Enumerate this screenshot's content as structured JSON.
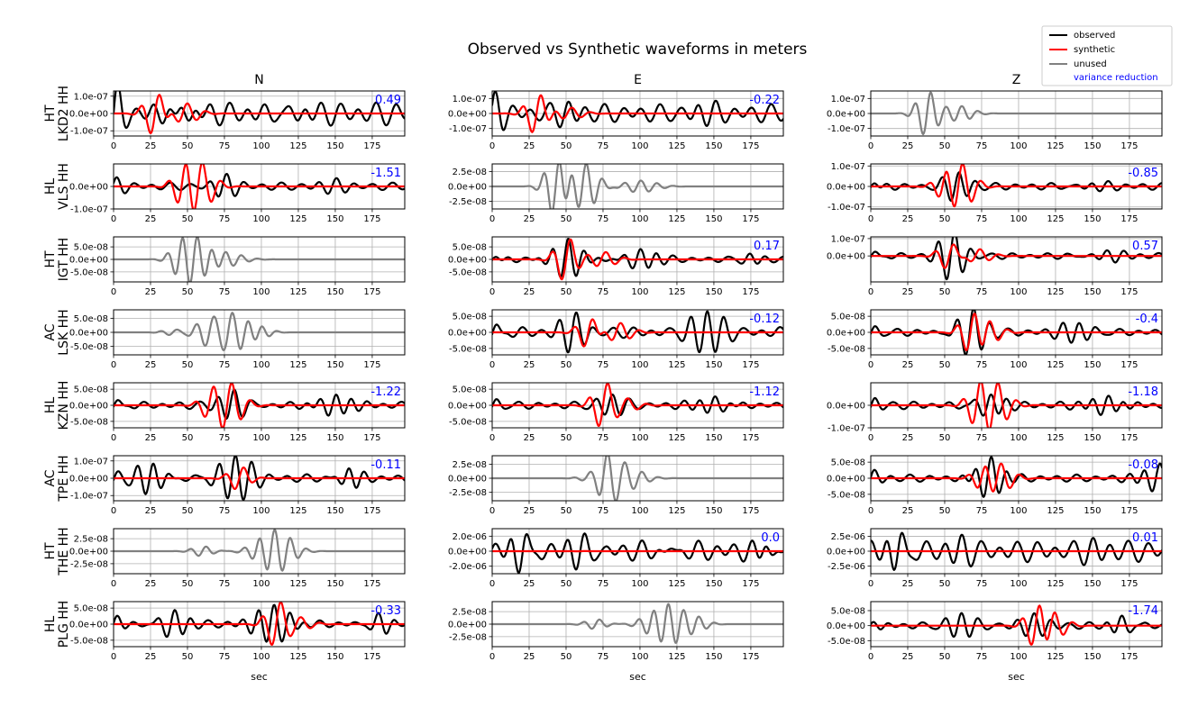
{
  "chart_data": {
    "type": "line",
    "title": "Observed vs Synthetic waveforms in meters",
    "xlabel": "sec",
    "xlim": [
      0,
      197
    ],
    "xticks": [
      0,
      25,
      50,
      75,
      100,
      125,
      150,
      175
    ],
    "columns": [
      "N",
      "E",
      "Z"
    ],
    "rows": [
      {
        "network": "HT",
        "station": "LKD2 HH"
      },
      {
        "network": "HL",
        "station": "VLS HH"
      },
      {
        "network": "HT",
        "station": "IGT HH"
      },
      {
        "network": "AC",
        "station": "LSK HH"
      },
      {
        "network": "HL",
        "station": "KZN HH"
      },
      {
        "network": "AC",
        "station": "TPE HH"
      },
      {
        "network": "HT",
        "station": "THE HH"
      },
      {
        "network": "HL",
        "station": "PLG HH"
      }
    ],
    "legend": {
      "position": "top-right",
      "entries": [
        {
          "label": "observed",
          "color": "#000000"
        },
        {
          "label": "synthetic",
          "color": "#ff0000"
        },
        {
          "label": "unused",
          "color": "#808080"
        },
        {
          "label": "variance reduction",
          "color": "#0000ff"
        }
      ]
    },
    "panels": [
      [
        {
          "used": true,
          "vr": "0.49",
          "ylim": [
            -1.3e-07,
            1.3e-07
          ],
          "yticks": [
            1e-07,
            0,
            -1e-07
          ],
          "ytick_labels": [
            "1.0e-07",
            "0.0e+00",
            "-1.0e-07"
          ],
          "obs_events": [
            [
              0,
              1.2e-07
            ],
            [
              45,
              7e-08
            ],
            [
              120,
              4e-08
            ]
          ],
          "syn_events": [
            [
              28,
              1.3e-07
            ],
            [
              48,
              6e-08
            ]
          ]
        },
        {
          "used": true,
          "vr": "-0.22",
          "ylim": [
            -1.5e-07,
            1.5e-07
          ],
          "yticks": [
            1e-07,
            0,
            -1e-07
          ],
          "ytick_labels": [
            "1.0e-07",
            "0.0e+00",
            "-1.0e-07"
          ],
          "obs_events": [
            [
              0,
              1.1e-07
            ],
            [
              50,
              4e-08
            ],
            [
              140,
              4e-08
            ]
          ],
          "syn_events": [
            [
              30,
              1.4e-07
            ],
            [
              52,
              4e-08
            ]
          ]
        },
        {
          "used": false,
          "vr": "",
          "ylim": [
            -1.5e-07,
            1.5e-07
          ],
          "yticks": [
            1e-07,
            0,
            -1e-07
          ],
          "ytick_labels": [
            "1.0e-07",
            "0.0e+00",
            "-1.0e-07"
          ],
          "obs_events": [
            [
              38,
              1.5e-07
            ],
            [
              60,
              5e-08
            ]
          ],
          "syn_events": []
        }
      ],
      [
        {
          "used": true,
          "vr": "-1.51",
          "ylim": [
            -1e-07,
            1e-07
          ],
          "yticks": [
            0,
            -1e-07
          ],
          "ytick_labels": [
            "0.0e+00",
            "-1.0e-07"
          ],
          "obs_events": [
            [
              0,
              3e-08
            ],
            [
              75,
              4e-08
            ],
            [
              150,
              2e-08
            ]
          ],
          "syn_events": [
            [
              47,
              8e-08
            ],
            [
              58,
              1.1e-07
            ]
          ]
        },
        {
          "used": false,
          "vr": "",
          "ylim": [
            -3.8e-08,
            3.8e-08
          ],
          "yticks": [
            2.5e-08,
            0,
            -2.5e-08
          ],
          "ytick_labels": [
            "2.5e-08",
            "0.0e+00",
            "-2.5e-08"
          ],
          "obs_events": [
            [
              43,
              5e-08
            ],
            [
              62,
              4e-08
            ],
            [
              100,
              1e-08
            ]
          ],
          "syn_events": []
        },
        {
          "used": true,
          "vr": "-0.85",
          "ylim": [
            -1.1e-07,
            1.1e-07
          ],
          "yticks": [
            1e-07,
            0,
            -1e-07
          ],
          "ytick_labels": [
            "1.0e-07",
            "0.0e+00",
            "-1.0e-07"
          ],
          "obs_events": [
            [
              0,
              3e-08
            ],
            [
              58,
              6e-08
            ],
            [
              150,
              2e-08
            ]
          ],
          "syn_events": [
            [
              50,
              7e-08
            ],
            [
              60,
              1.2e-07
            ]
          ]
        }
      ],
      [
        {
          "used": false,
          "vr": "",
          "ylim": [
            -9e-08,
            9e-08
          ],
          "yticks": [
            5e-08,
            0,
            -5e-08
          ],
          "ytick_labels": [
            "5.0e-08",
            "0.0e+00",
            "-5.0e-08"
          ],
          "obs_events": [
            [
              45,
              5e-08
            ],
            [
              55,
              9e-08
            ],
            [
              75,
              3e-08
            ]
          ],
          "syn_events": []
        },
        {
          "used": true,
          "vr": "0.17",
          "ylim": [
            -9e-08,
            9e-08
          ],
          "yticks": [
            5e-08,
            0,
            -5e-08
          ],
          "ytick_labels": [
            "5.0e-08",
            "0.0e+00",
            "-5.0e-08"
          ],
          "obs_events": [
            [
              0,
              2e-08
            ],
            [
              50,
              9e-08
            ],
            [
              100,
              4e-08
            ],
            [
              175,
              2e-08
            ]
          ],
          "syn_events": [
            [
              50,
              9e-08
            ],
            [
              75,
              3e-08
            ]
          ]
        },
        {
          "used": true,
          "vr": "0.57",
          "ylim": [
            -1.5e-07,
            1.1e-07
          ],
          "yticks": [
            1e-07,
            0
          ],
          "ytick_labels": [
            "1.0e-07",
            "0.0e+00"
          ],
          "obs_events": [
            [
              0,
              3e-08
            ],
            [
              55,
              1.3e-07
            ],
            [
              160,
              3e-08
            ]
          ],
          "syn_events": [
            [
              53,
              8e-08
            ],
            [
              72,
              4e-08
            ]
          ]
        }
      ],
      [
        {
          "used": false,
          "vr": "",
          "ylim": [
            -8e-08,
            8e-08
          ],
          "yticks": [
            5e-08,
            0,
            -5e-08
          ],
          "ytick_labels": [
            "5.0e-08",
            "0.0e+00",
            "-5.0e-08"
          ],
          "obs_events": [
            [
              40,
              1e-08
            ],
            [
              65,
              5e-08
            ],
            [
              80,
              7e-08
            ],
            [
              100,
              2e-08
            ]
          ],
          "syn_events": []
        },
        {
          "used": true,
          "vr": "-0.12",
          "ylim": [
            -7e-08,
            7e-08
          ],
          "yticks": [
            5e-08,
            0,
            -5e-08
          ],
          "ytick_labels": [
            "5.0e-08",
            "0.0e+00",
            "-5.0e-08"
          ],
          "obs_events": [
            [
              0,
              3e-08
            ],
            [
              55,
              5e-08
            ],
            [
              145,
              6e-08
            ]
          ],
          "syn_events": [
            [
              65,
              5e-08
            ],
            [
              85,
              3e-08
            ]
          ]
        },
        {
          "used": true,
          "vr": "-0.4",
          "ylim": [
            -7e-08,
            7e-08
          ],
          "yticks": [
            5e-08,
            0,
            -5e-08
          ],
          "ytick_labels": [
            "5.0e-08",
            "0.0e+00",
            "-5.0e-08"
          ],
          "obs_events": [
            [
              0,
              2e-08
            ],
            [
              68,
              7e-08
            ],
            [
              140,
              3e-08
            ]
          ],
          "syn_events": [
            [
              68,
              7e-08
            ],
            [
              78,
              4e-08
            ]
          ]
        }
      ],
      [
        {
          "used": true,
          "vr": "-1.22",
          "ylim": [
            -7e-08,
            7e-08
          ],
          "yticks": [
            5e-08,
            0,
            -5e-08
          ],
          "ytick_labels": [
            "5.0e-08",
            "0.0e+00",
            "-5.0e-08"
          ],
          "obs_events": [
            [
              0,
              2e-08
            ],
            [
              80,
              4e-08
            ],
            [
              150,
              4e-08
            ]
          ],
          "syn_events": [
            [
              65,
              3e-08
            ],
            [
              78,
              7e-08
            ]
          ]
        },
        {
          "used": true,
          "vr": "-1.12",
          "ylim": [
            -7e-08,
            7e-08
          ],
          "yticks": [
            5e-08,
            0,
            -5e-08
          ],
          "ytick_labels": [
            "5.0e-08",
            "0.0e+00",
            "-5.0e-08"
          ],
          "obs_events": [
            [
              0,
              2e-08
            ],
            [
              80,
              3e-08
            ],
            [
              150,
              3e-08
            ]
          ],
          "syn_events": [
            [
              75,
              7e-08
            ],
            [
              90,
              2e-08
            ]
          ]
        },
        {
          "used": true,
          "vr": "-1.18",
          "ylim": [
            -1e-07,
            1e-07
          ],
          "yticks": [
            0,
            -1e-07
          ],
          "ytick_labels": [
            "0.0e+00",
            "-1.0e-07"
          ],
          "obs_events": [
            [
              0,
              3e-08
            ],
            [
              80,
              5e-08
            ],
            [
              160,
              5e-08
            ]
          ],
          "syn_events": [
            [
              72,
              8e-08
            ],
            [
              84,
              1e-07
            ]
          ]
        }
      ],
      [
        {
          "used": true,
          "vr": "-0.11",
          "ylim": [
            -1.3e-07,
            1.3e-07
          ],
          "yticks": [
            1e-07,
            0,
            -1e-07
          ],
          "ytick_labels": [
            "1.0e-07",
            "0.0e+00",
            "-1.0e-07"
          ],
          "obs_events": [
            [
              0,
              4e-08
            ],
            [
              25,
              1e-07
            ],
            [
              82,
              1.3e-07
            ],
            [
              160,
              7e-08
            ]
          ],
          "syn_events": [
            [
              85,
              7e-08
            ]
          ]
        },
        {
          "used": false,
          "vr": "",
          "ylim": [
            -4e-08,
            4e-08
          ],
          "yticks": [
            2.5e-08,
            0,
            -2.5e-08
          ],
          "ytick_labels": [
            "2.5e-08",
            "0.0e+00",
            "-2.5e-08"
          ],
          "obs_events": [
            [
              70,
              2e-08
            ],
            [
              76,
              5e-08
            ],
            [
              90,
              2e-08
            ]
          ],
          "syn_events": []
        },
        {
          "used": true,
          "vr": "-0.08",
          "ylim": [
            -7e-08,
            7e-08
          ],
          "yticks": [
            5e-08,
            0,
            -5e-08
          ],
          "ytick_labels": [
            "5.0e-08",
            "0.0e+00",
            "-5.0e-08"
          ],
          "obs_events": [
            [
              0,
              2e-08
            ],
            [
              80,
              7e-08
            ],
            [
              195,
              5e-08
            ]
          ],
          "syn_events": [
            [
              76,
              4e-08
            ],
            [
              86,
              5e-08
            ]
          ]
        }
      ],
      [
        {
          "used": false,
          "vr": "",
          "ylim": [
            -4.5e-08,
            4.5e-08
          ],
          "yticks": [
            2.5e-08,
            0,
            -2.5e-08
          ],
          "ytick_labels": [
            "2.5e-08",
            "0.0e+00",
            "-2.5e-08"
          ],
          "obs_events": [
            [
              60,
              1e-08
            ],
            [
              100,
              2e-08
            ],
            [
              108,
              5e-08
            ]
          ],
          "syn_events": []
        },
        {
          "used": true,
          "vr": "0.0",
          "ylim": [
            -3e-06,
            3e-06
          ],
          "yticks": [
            2e-06,
            0,
            -2e-06
          ],
          "ytick_labels": [
            "2.0e-06",
            "0.0e+00",
            "-2.0e-06"
          ],
          "obs_events": [
            [
              20,
              2.5e-06
            ],
            [
              60,
              1.5e-06
            ],
            [
              120,
              8e-07
            ],
            [
              185,
              1.5e-06
            ]
          ],
          "syn_events": [
            [
              60,
              1e-08
            ]
          ]
        },
        {
          "used": true,
          "vr": "0.01",
          "ylim": [
            -3.8e-06,
            3.8e-06
          ],
          "yticks": [
            2.5e-06,
            0,
            -2.5e-06
          ],
          "ytick_labels": [
            "2.5e-06",
            "0.0e+00",
            "-2.5e-06"
          ],
          "obs_events": [
            [
              18,
              3.2e-06
            ],
            [
              60,
              1.3e-06
            ],
            [
              150,
              8e-07
            ]
          ],
          "syn_events": [
            [
              60,
              1e-08
            ]
          ]
        }
      ],
      [
        {
          "used": true,
          "vr": "-0.33",
          "ylim": [
            -7e-08,
            7e-08
          ],
          "yticks": [
            5e-08,
            0,
            -5e-08
          ],
          "ytick_labels": [
            "5.0e-08",
            "0.0e+00",
            "-5.0e-08"
          ],
          "obs_events": [
            [
              0,
              2e-08
            ],
            [
              40,
              4e-08
            ],
            [
              108,
              7e-08
            ],
            [
              180,
              3e-08
            ]
          ],
          "syn_events": [
            [
              110,
              7e-08
            ],
            [
              125,
              2e-08
            ]
          ]
        },
        {
          "used": false,
          "vr": "",
          "ylim": [
            -4.5e-08,
            4.5e-08
          ],
          "yticks": [
            2.5e-08,
            0,
            -2.5e-08
          ],
          "ytick_labels": [
            "2.5e-08",
            "0.0e+00",
            "-2.5e-08"
          ],
          "obs_events": [
            [
              70,
              1e-08
            ],
            [
              110,
              3e-08
            ],
            [
              118,
              5e-08
            ],
            [
              140,
              1e-08
            ]
          ],
          "syn_events": []
        },
        {
          "used": true,
          "vr": "-1.74",
          "ylim": [
            -7e-08,
            8e-08
          ],
          "yticks": [
            5e-08,
            0,
            -5e-08
          ],
          "ytick_labels": [
            "5.0e-08",
            "0.0e+00",
            "-5.0e-08"
          ],
          "obs_events": [
            [
              0,
              2e-08
            ],
            [
              60,
              4e-08
            ],
            [
              110,
              3e-08
            ],
            [
              170,
              3e-08
            ]
          ],
          "syn_events": [
            [
              112,
              8e-08
            ],
            [
              122,
              5e-08
            ]
          ]
        }
      ]
    ]
  }
}
